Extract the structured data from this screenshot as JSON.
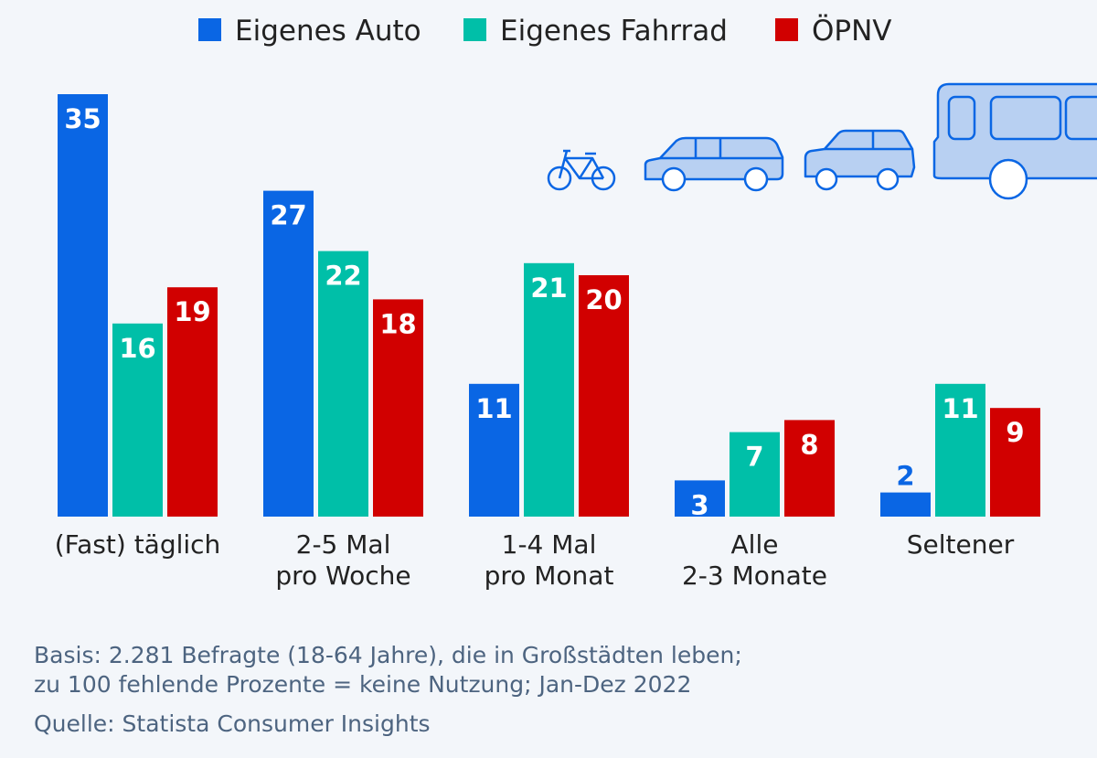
{
  "chart_data": {
    "type": "bar",
    "categories": [
      "(Fast) täglich",
      "2-5 Mal\npro Woche",
      "1-4 Mal\npro Monat",
      "Alle\n2-3 Monate",
      "Seltener"
    ],
    "series": [
      {
        "name": "Eigenes Auto",
        "color": "#0a66e4",
        "values": [
          35,
          27,
          11,
          3,
          2
        ]
      },
      {
        "name": "Eigenes Fahrrad",
        "color": "#00bfa8",
        "values": [
          16,
          22,
          21,
          7,
          11
        ]
      },
      {
        "name": "ÖPNV",
        "color": "#d10000",
        "values": [
          19,
          18,
          20,
          8,
          9
        ]
      }
    ],
    "ylim": [
      0,
      35
    ],
    "grid": false,
    "legend": "top",
    "unit": "%"
  },
  "icons": [
    "bicycle-icon",
    "station-wagon-icon",
    "car-icon",
    "bus-icon"
  ],
  "footer": {
    "basis_line1": "Basis: 2.281 Befragte (18-64 Jahre), die in Großstädten leben;",
    "basis_line2": "zu 100 fehlende Prozente = keine Nutzung; Jan-Dez 2022",
    "source": "Quelle: Statista Consumer Insights"
  }
}
